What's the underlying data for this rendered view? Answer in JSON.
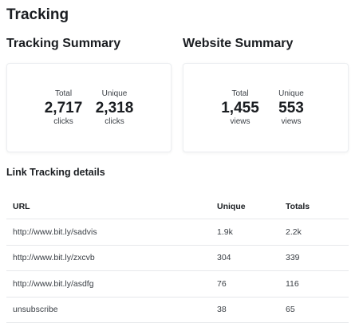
{
  "page_title": "Tracking",
  "tracking_summary": {
    "title": "Tracking Summary",
    "total": {
      "label": "Total",
      "value": "2,717",
      "unit": "clicks"
    },
    "unique": {
      "label": "Unique",
      "value": "2,318",
      "unit": "clicks"
    }
  },
  "website_summary": {
    "title": "Website Summary",
    "total": {
      "label": "Total",
      "value": "1,455",
      "unit": "views"
    },
    "unique": {
      "label": "Unique",
      "value": "553",
      "unit": "views"
    }
  },
  "link_details": {
    "title": "Link Tracking details",
    "columns": {
      "url": "URL",
      "unique": "Unique",
      "totals": "Totals"
    },
    "rows": [
      {
        "url": "http://www.bit.ly/sadvis",
        "unique": "1.9k",
        "totals": "2.2k"
      },
      {
        "url": "http://www.bit.ly/zxcvb",
        "unique": "304",
        "totals": "339"
      },
      {
        "url": "http://www.bit.ly/asdfg",
        "unique": "76",
        "totals": "116"
      },
      {
        "url": "unsubscribe",
        "unique": "38",
        "totals": "65"
      }
    ]
  }
}
